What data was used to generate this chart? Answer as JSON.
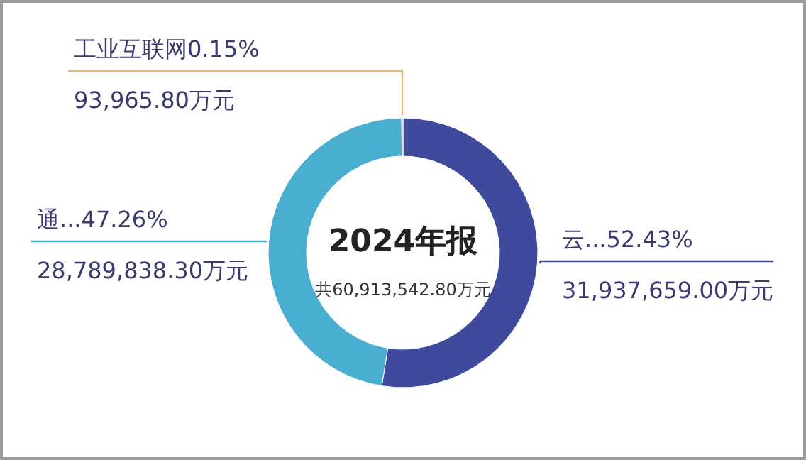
{
  "chart_data": {
    "type": "donut",
    "title": "2024年报",
    "subtitle": "共60,913,542.80万元",
    "categories": [
      "云...",
      "通...",
      "工业互联网"
    ],
    "values": [
      31937659.0,
      28789838.3,
      93965.8
    ],
    "value_labels": [
      "52.43%\n31,937,659.00万元",
      "47.26%\n28,789,838.30万元",
      "0.15%\n93,965.80万元"
    ],
    "colors": [
      "#3f4a9c",
      "#4aaed0",
      "#e8b87a"
    ]
  }
}
